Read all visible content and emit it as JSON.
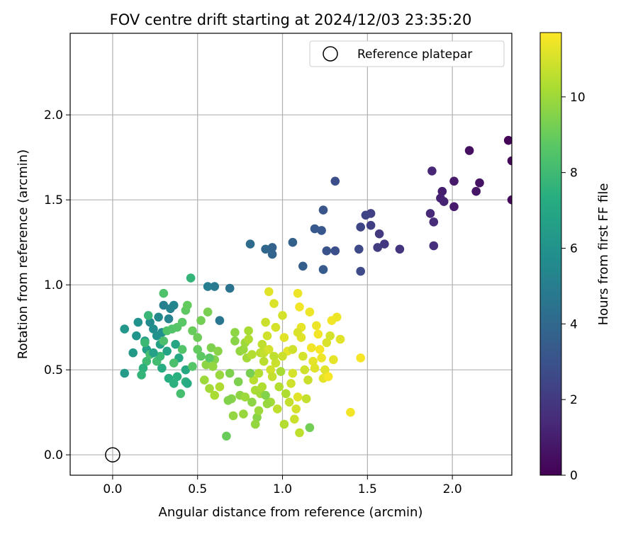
{
  "chart_data": {
    "type": "scatter",
    "title": "FOV centre drift starting at 2024/12/03 23:35:20",
    "xlabel": "Angular distance from reference (arcmin)",
    "ylabel": "Rotation from reference (arcmin)",
    "xlim": [
      -0.25,
      2.35
    ],
    "ylim": [
      -0.12,
      2.48
    ],
    "xticks": [
      "0.0",
      "0.5",
      "1.0",
      "1.5",
      "2.0"
    ],
    "yticks": [
      "0.0",
      "0.5",
      "1.0",
      "1.5",
      "2.0"
    ],
    "grid": true,
    "legend": {
      "position": "top-right",
      "entries": [
        "Reference platepar"
      ]
    },
    "reference_point": {
      "x": 0.0,
      "y": 0.0
    },
    "colorbar": {
      "label": "Hours from first FF file",
      "colormap": "viridis",
      "range": [
        0,
        11.7
      ],
      "ticks": [
        "0",
        "2",
        "4",
        "6",
        "8",
        "10"
      ]
    },
    "series": [
      {
        "color_value": "hours",
        "points": [
          [
            2.33,
            1.85,
            0.1
          ],
          [
            2.35,
            1.73,
            0.2
          ],
          [
            2.35,
            1.5,
            0.3
          ],
          [
            2.1,
            1.79,
            0.5
          ],
          [
            2.16,
            1.6,
            0.6
          ],
          [
            2.14,
            1.55,
            0.7
          ],
          [
            2.01,
            1.61,
            0.8
          ],
          [
            2.01,
            1.46,
            0.9
          ],
          [
            1.94,
            1.55,
            1.0
          ],
          [
            1.93,
            1.51,
            1.1
          ],
          [
            1.95,
            1.49,
            1.2
          ],
          [
            1.88,
            1.67,
            1.3
          ],
          [
            1.87,
            1.42,
            1.4
          ],
          [
            1.89,
            1.37,
            1.5
          ],
          [
            1.89,
            1.23,
            1.6
          ],
          [
            1.69,
            1.21,
            1.8
          ],
          [
            1.6,
            1.24,
            1.9
          ],
          [
            1.57,
            1.3,
            2.0
          ],
          [
            1.56,
            1.22,
            2.1
          ],
          [
            1.52,
            1.35,
            2.2
          ],
          [
            1.52,
            1.42,
            2.3
          ],
          [
            1.49,
            1.41,
            2.4
          ],
          [
            1.46,
            1.34,
            2.5
          ],
          [
            1.45,
            1.21,
            2.6
          ],
          [
            1.46,
            1.08,
            2.7
          ],
          [
            1.31,
            1.61,
            2.8
          ],
          [
            1.31,
            1.2,
            2.9
          ],
          [
            1.26,
            1.2,
            3.0
          ],
          [
            1.24,
            1.44,
            3.1
          ],
          [
            1.23,
            1.32,
            3.2
          ],
          [
            1.19,
            1.33,
            3.3
          ],
          [
            1.24,
            1.09,
            3.4
          ],
          [
            1.12,
            1.11,
            3.5
          ],
          [
            1.06,
            1.25,
            3.6
          ],
          [
            0.94,
            1.22,
            3.7
          ],
          [
            0.94,
            1.18,
            3.8
          ],
          [
            0.9,
            1.21,
            3.9
          ],
          [
            0.81,
            1.24,
            4.1
          ],
          [
            0.69,
            0.98,
            4.5
          ],
          [
            0.63,
            0.79,
            4.6
          ],
          [
            0.6,
            0.99,
            4.8
          ],
          [
            0.56,
            0.99,
            5.0
          ],
          [
            0.3,
            0.88,
            5.1
          ],
          [
            0.34,
            0.86,
            5.2
          ],
          [
            0.33,
            0.8,
            5.3
          ],
          [
            0.36,
            0.88,
            5.4
          ],
          [
            0.27,
            0.81,
            5.5
          ],
          [
            0.22,
            0.78,
            5.6
          ],
          [
            0.24,
            0.74,
            5.7
          ],
          [
            0.29,
            0.72,
            5.8
          ],
          [
            0.26,
            0.7,
            5.9
          ],
          [
            0.15,
            0.78,
            6.0
          ],
          [
            0.14,
            0.7,
            6.1
          ],
          [
            0.07,
            0.74,
            6.2
          ],
          [
            0.12,
            0.6,
            6.3
          ],
          [
            0.07,
            0.48,
            6.4
          ],
          [
            0.19,
            0.67,
            6.5
          ],
          [
            0.2,
            0.62,
            6.6
          ],
          [
            0.28,
            0.65,
            6.7
          ],
          [
            0.32,
            0.61,
            6.8
          ],
          [
            0.37,
            0.65,
            6.9
          ],
          [
            0.39,
            0.57,
            7.0
          ],
          [
            0.43,
            0.5,
            7.1
          ],
          [
            0.29,
            0.51,
            7.2
          ],
          [
            0.33,
            0.45,
            7.3
          ],
          [
            0.38,
            0.46,
            7.4
          ],
          [
            0.36,
            0.42,
            7.5
          ],
          [
            0.43,
            0.43,
            7.6
          ],
          [
            0.46,
            1.04,
            7.7
          ],
          [
            0.21,
            0.82,
            7.8
          ],
          [
            0.19,
            0.66,
            7.9
          ],
          [
            0.2,
            0.55,
            8.0
          ],
          [
            0.26,
            0.55,
            8.1
          ],
          [
            0.22,
            0.59,
            8.2
          ],
          [
            0.3,
            0.67,
            8.3
          ],
          [
            0.32,
            0.73,
            8.4
          ],
          [
            0.35,
            0.74,
            8.5
          ],
          [
            0.38,
            0.75,
            8.6
          ],
          [
            0.41,
            0.78,
            8.7
          ],
          [
            0.43,
            0.85,
            8.8
          ],
          [
            0.44,
            0.88,
            8.9
          ],
          [
            0.47,
            0.73,
            9.0
          ],
          [
            0.5,
            0.69,
            9.1
          ],
          [
            0.52,
            0.79,
            9.2
          ],
          [
            0.56,
            0.84,
            9.3
          ],
          [
            0.58,
            0.63,
            9.4
          ],
          [
            0.6,
            0.56,
            9.5
          ],
          [
            0.62,
            0.61,
            9.6
          ],
          [
            0.55,
            0.53,
            9.7
          ],
          [
            0.59,
            0.52,
            9.8
          ],
          [
            0.63,
            0.47,
            9.9
          ],
          [
            0.54,
            0.44,
            10.0
          ],
          [
            0.57,
            0.39,
            10.1
          ],
          [
            0.6,
            0.35,
            10.2
          ],
          [
            0.63,
            0.4,
            10.3
          ],
          [
            0.3,
            0.95,
            8.4
          ],
          [
            0.4,
            0.36,
            8.2
          ],
          [
            0.44,
            0.42,
            7.2
          ],
          [
            0.18,
            0.51,
            7.5
          ],
          [
            0.17,
            0.47,
            7.7
          ],
          [
            0.28,
            0.58,
            7.9
          ],
          [
            0.24,
            0.6,
            6.7
          ],
          [
            0.52,
            0.58,
            8.8
          ],
          [
            0.5,
            0.62,
            8.9
          ],
          [
            0.57,
            0.57,
            8.7
          ],
          [
            0.47,
            0.52,
            8.6
          ],
          [
            0.36,
            0.54,
            8.3
          ],
          [
            0.41,
            0.62,
            8.5
          ],
          [
            0.67,
            0.11,
            9.0
          ],
          [
            0.69,
            0.48,
            9.4
          ],
          [
            0.7,
            0.33,
            9.6
          ],
          [
            0.71,
            0.23,
            9.8
          ],
          [
            0.75,
            0.35,
            9.7
          ],
          [
            0.77,
            0.24,
            9.9
          ],
          [
            0.78,
            0.34,
            10.0
          ],
          [
            0.72,
            0.67,
            9.6
          ],
          [
            0.72,
            0.72,
            9.7
          ],
          [
            0.75,
            0.61,
            9.8
          ],
          [
            0.77,
            0.62,
            9.9
          ],
          [
            0.78,
            0.66,
            10.0
          ],
          [
            0.79,
            0.57,
            10.1
          ],
          [
            0.8,
            0.73,
            10.2
          ],
          [
            0.8,
            0.68,
            10.3
          ],
          [
            0.82,
            0.59,
            10.4
          ],
          [
            0.83,
            0.44,
            10.5
          ],
          [
            0.84,
            0.38,
            10.2
          ],
          [
            0.85,
            0.22,
            9.6
          ],
          [
            0.84,
            0.18,
            9.8
          ],
          [
            0.86,
            0.26,
            10.0
          ],
          [
            0.87,
            0.36,
            10.1
          ],
          [
            0.88,
            0.4,
            10.3
          ],
          [
            0.86,
            0.48,
            10.4
          ],
          [
            0.87,
            0.6,
            10.5
          ],
          [
            0.88,
            0.65,
            10.6
          ],
          [
            0.89,
            0.6,
            10.7
          ],
          [
            0.9,
            0.78,
            10.8
          ],
          [
            0.91,
            0.7,
            10.9
          ],
          [
            0.92,
            0.62,
            11.0
          ],
          [
            0.92,
            0.96,
            11.2
          ],
          [
            0.93,
            0.5,
            10.9
          ],
          [
            0.94,
            0.46,
            10.7
          ],
          [
            0.95,
            0.89,
            11.1
          ],
          [
            0.96,
            0.54,
            10.8
          ],
          [
            0.96,
            0.75,
            11.0
          ],
          [
            0.97,
            0.27,
            10.6
          ],
          [
            0.98,
            0.4,
            10.4
          ],
          [
            0.99,
            0.49,
            10.2
          ],
          [
            1.0,
            0.82,
            11.0
          ],
          [
            1.01,
            0.18,
            10.4
          ],
          [
            1.01,
            0.69,
            11.2
          ],
          [
            1.03,
            0.61,
            11.3
          ],
          [
            1.04,
            0.31,
            10.7
          ],
          [
            1.05,
            0.42,
            10.9
          ],
          [
            1.06,
            0.48,
            11.0
          ],
          [
            1.07,
            0.21,
            10.8
          ],
          [
            1.08,
            0.27,
            11.0
          ],
          [
            1.09,
            0.34,
            11.2
          ],
          [
            1.09,
            0.95,
            11.4
          ],
          [
            1.1,
            0.87,
            11.5
          ],
          [
            1.11,
            0.75,
            11.3
          ],
          [
            1.11,
            0.69,
            11.2
          ],
          [
            1.12,
            0.58,
            11.0
          ],
          [
            1.13,
            0.5,
            10.9
          ],
          [
            1.14,
            0.33,
            10.7
          ],
          [
            1.15,
            0.44,
            10.8
          ],
          [
            1.16,
            0.16,
            9.2
          ],
          [
            1.16,
            0.84,
            11.4
          ],
          [
            1.17,
            0.63,
            11.5
          ],
          [
            1.18,
            0.55,
            11.3
          ],
          [
            1.19,
            0.51,
            11.2
          ],
          [
            1.2,
            0.76,
            11.4
          ],
          [
            1.21,
            0.71,
            11.5
          ],
          [
            1.22,
            0.62,
            11.6
          ],
          [
            1.23,
            0.57,
            11.4
          ],
          [
            1.24,
            0.45,
            11.3
          ],
          [
            1.25,
            0.5,
            11.2
          ],
          [
            1.26,
            0.66,
            11.1
          ],
          [
            1.27,
            0.46,
            11.6
          ],
          [
            1.28,
            0.7,
            11.0
          ],
          [
            1.29,
            0.79,
            11.5
          ],
          [
            1.3,
            0.56,
            11.3
          ],
          [
            1.32,
            0.81,
            11.4
          ],
          [
            1.34,
            0.68,
            11.2
          ],
          [
            1.4,
            0.25,
            11.5
          ],
          [
            1.46,
            0.57,
            11.6
          ],
          [
            1.1,
            0.13,
            10.6
          ],
          [
            1.02,
            0.36,
            10.3
          ],
          [
            0.93,
            0.31,
            10.1
          ],
          [
            0.91,
            0.3,
            9.9
          ],
          [
            0.82,
            0.31,
            9.7
          ],
          [
            0.68,
            0.32,
            9.5
          ],
          [
            0.74,
            0.43,
            9.4
          ],
          [
            0.81,
            0.48,
            9.3
          ],
          [
            0.9,
            0.35,
            9.5
          ],
          [
            1.09,
            0.72,
            11.1
          ],
          [
            1.06,
            0.62,
            10.9
          ],
          [
            1.0,
            0.58,
            10.8
          ],
          [
            0.95,
            0.58,
            10.6
          ],
          [
            0.89,
            0.55,
            10.5
          ]
        ]
      }
    ]
  }
}
